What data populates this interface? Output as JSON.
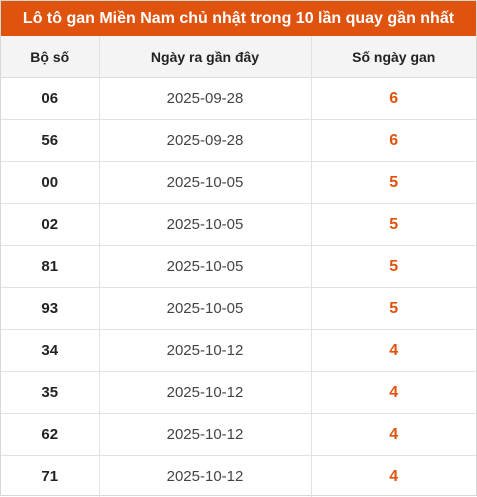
{
  "title": "Lô tô gan Miền Nam chủ nhật trong 10 lần quay gần nhất",
  "columns": [
    "Bộ số",
    "Ngày ra gần đây",
    "Số ngày gan"
  ],
  "rows": [
    {
      "number": "06",
      "date": "2025-09-28",
      "days": "6"
    },
    {
      "number": "56",
      "date": "2025-09-28",
      "days": "6"
    },
    {
      "number": "00",
      "date": "2025-10-05",
      "days": "5"
    },
    {
      "number": "02",
      "date": "2025-10-05",
      "days": "5"
    },
    {
      "number": "81",
      "date": "2025-10-05",
      "days": "5"
    },
    {
      "number": "93",
      "date": "2025-10-05",
      "days": "5"
    },
    {
      "number": "34",
      "date": "2025-10-12",
      "days": "4"
    },
    {
      "number": "35",
      "date": "2025-10-12",
      "days": "4"
    },
    {
      "number": "62",
      "date": "2025-10-12",
      "days": "4"
    },
    {
      "number": "71",
      "date": "2025-10-12",
      "days": "4"
    }
  ],
  "colors": {
    "accent": "#e0530f",
    "header_bg": "#f4f4f4"
  }
}
